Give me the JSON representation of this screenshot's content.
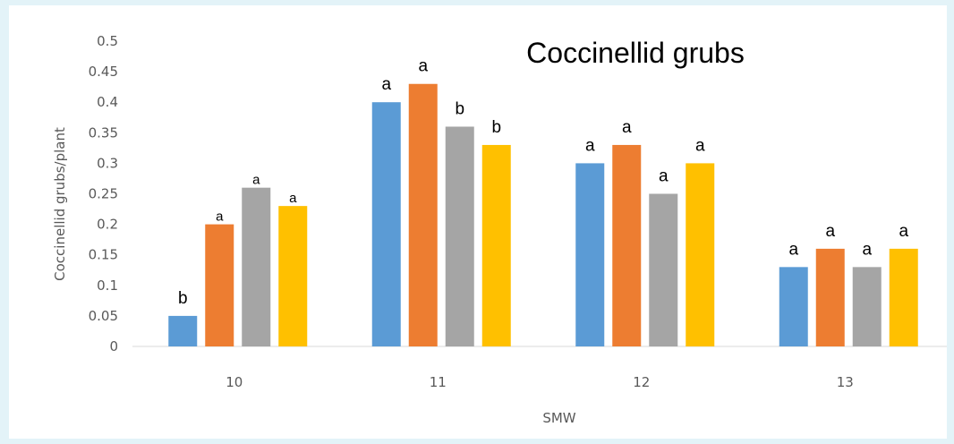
{
  "chart_data": {
    "type": "bar",
    "title": "Coccinellid grubs",
    "xlabel": "SMW",
    "ylabel": "Coccinellid grubs/plant",
    "ylim": [
      0,
      0.5
    ],
    "yticks": [
      "0",
      "0.05",
      "0.1",
      "0.15",
      "0.2",
      "0.25",
      "0.3",
      "0.35",
      "0.4",
      "0.45",
      "0.5"
    ],
    "categories": [
      "10",
      "11",
      "12",
      "13"
    ],
    "series": [
      {
        "color": "#5b9bd5",
        "values": [
          0.05,
          0.4,
          0.3,
          0.13
        ],
        "labels": [
          "b",
          "a",
          "a",
          "a"
        ]
      },
      {
        "color": "#ed7d31",
        "values": [
          0.2,
          0.43,
          0.33,
          0.16
        ],
        "labels": [
          "a",
          "a",
          "a",
          "a"
        ]
      },
      {
        "color": "#a5a5a5",
        "values": [
          0.26,
          0.36,
          0.25,
          0.13
        ],
        "labels": [
          "a",
          "b",
          "a",
          "a"
        ]
      },
      {
        "color": "#ffc000",
        "values": [
          0.23,
          0.33,
          0.3,
          0.16
        ],
        "labels": [
          "a",
          "b",
          "a",
          "a"
        ]
      }
    ],
    "grid": false,
    "legend": "none"
  }
}
